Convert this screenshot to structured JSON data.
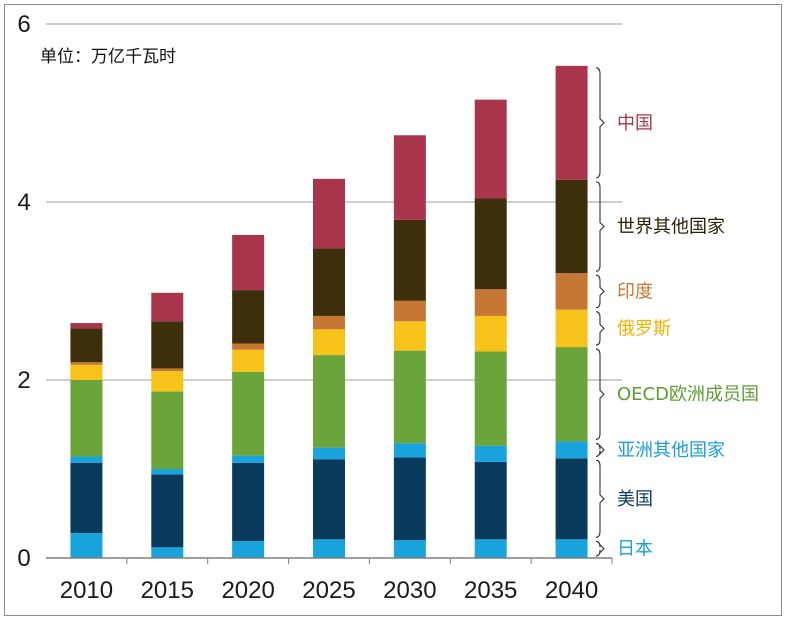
{
  "chart_data": {
    "type": "bar",
    "stacked": true,
    "unit_label": "单位：万亿千瓦时",
    "ylim": [
      0,
      6
    ],
    "yticks": [
      "0",
      "2",
      "4",
      "6"
    ],
    "grid": true,
    "legend_placement": "right",
    "categories": [
      "2010",
      "2015",
      "2020",
      "2025",
      "2030",
      "2035",
      "2040"
    ],
    "series": [
      {
        "name": "日本",
        "color": "#18a3dd",
        "values": [
          0.28,
          0.12,
          0.19,
          0.21,
          0.2,
          0.21,
          0.21
        ]
      },
      {
        "name": "美国",
        "color": "#0a3b5c",
        "values": [
          0.79,
          0.82,
          0.88,
          0.9,
          0.93,
          0.87,
          0.91
        ]
      },
      {
        "name": "亚洲其他国家",
        "color": "#18a3dd",
        "values": [
          0.07,
          0.06,
          0.08,
          0.13,
          0.16,
          0.18,
          0.19
        ]
      },
      {
        "name": "OECD欧洲成员国",
        "color": "#6aa43a",
        "values": [
          0.86,
          0.87,
          0.94,
          1.04,
          1.04,
          1.06,
          1.06
        ]
      },
      {
        "name": "俄罗斯",
        "color": "#f7c21a",
        "values": [
          0.17,
          0.23,
          0.25,
          0.29,
          0.33,
          0.4,
          0.42
        ]
      },
      {
        "name": "印度",
        "color": "#c77734",
        "values": [
          0.03,
          0.03,
          0.07,
          0.15,
          0.23,
          0.3,
          0.41
        ]
      },
      {
        "name": "世界其他国家",
        "color": "#3d2e0c",
        "values": [
          0.38,
          0.53,
          0.6,
          0.76,
          0.91,
          1.02,
          1.05
        ]
      },
      {
        "name": "中国",
        "color": "#a8354b",
        "values": [
          0.06,
          0.32,
          0.62,
          0.78,
          0.95,
          1.11,
          1.28
        ]
      }
    ],
    "legend_order": [
      "中国",
      "世界其他国家",
      "印度",
      "俄罗斯",
      "OECD欧洲成员国",
      "亚洲其他国家",
      "美国",
      "日本"
    ],
    "legend_colors": {
      "中国": "#a8354b",
      "世界其他国家": "#2b1f08",
      "印度": "#c77734",
      "俄罗斯": "#f0b400",
      "OECD欧洲成员国": "#5f9c30",
      "亚洲其他国家": "#1a9fd8",
      "美国": "#0a3b5c",
      "日本": "#1a9fd8"
    }
  }
}
